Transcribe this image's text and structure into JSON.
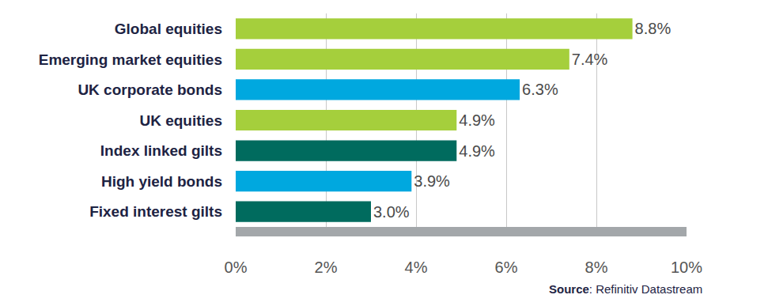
{
  "chart_data": {
    "type": "bar",
    "orientation": "horizontal",
    "categories": [
      "Global equities",
      "Emerging market equities",
      "UK corporate bonds",
      "UK equities",
      "Index linked gilts",
      "High yield bonds",
      "Fixed interest gilts"
    ],
    "values": [
      8.8,
      7.4,
      6.3,
      4.9,
      4.9,
      3.9,
      3.0
    ],
    "value_labels": [
      "8.8%",
      "7.4%",
      "6.3%",
      "4.9%",
      "4.9%",
      "3.9%",
      "3.0%"
    ],
    "colors": [
      "#a5cf3c",
      "#a5cf3c",
      "#00a8df",
      "#a5cf3c",
      "#006b5e",
      "#00a8df",
      "#006b5e"
    ],
    "xlim": [
      0,
      10
    ],
    "xticks": [
      {
        "value": 0,
        "label": "0%"
      },
      {
        "value": 2,
        "label": "2%"
      },
      {
        "value": 4,
        "label": "4%"
      },
      {
        "value": 6,
        "label": "6%"
      },
      {
        "value": 8,
        "label": "8%"
      },
      {
        "value": 10,
        "label": "10%"
      }
    ],
    "grid": true,
    "data_labels": true,
    "annotations": [
      "Source: Refinitiv Datastream"
    ]
  }
}
